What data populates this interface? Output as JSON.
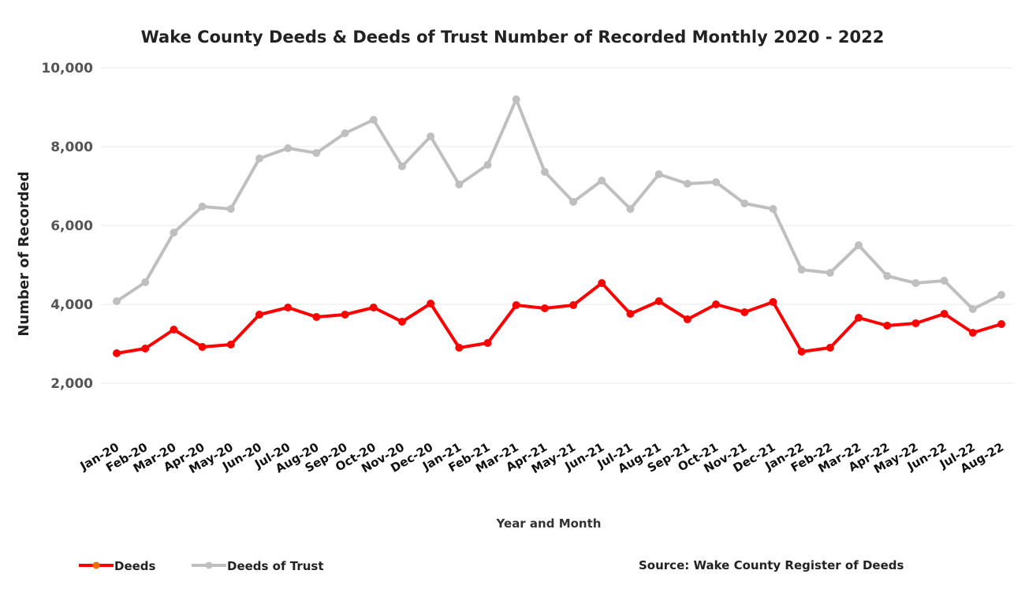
{
  "chart_data": {
    "type": "line",
    "title": "Wake County Deeds & Deeds of Trust Number of Recorded Monthly 2020 - 2022",
    "xlabel": "Year and Month",
    "ylabel": "Number of Recorded",
    "ylim": [
      0,
      10000
    ],
    "yticks": [
      "2,000",
      "4,000",
      "6,000",
      "8,000",
      "10,000"
    ],
    "ytick_values": [
      2000,
      4000,
      6000,
      8000,
      10000
    ],
    "grid": true,
    "legend_position": "bottom-left",
    "categories": [
      "Jan-20",
      "Feb-20",
      "Mar-20",
      "Apr-20",
      "May-20",
      "Jun-20",
      "Jul-20",
      "Aug-20",
      "Sep-20",
      "Oct-20",
      "Nov-20",
      "Dec-20",
      "Jan-21",
      "Feb-21",
      "Mar-21",
      "Apr-21",
      "May-21",
      "Jun-21",
      "Jul-21",
      "Aug-21",
      "Sep-21",
      "Oct-21",
      "Nov-21",
      "Dec-21",
      "Jan-22",
      "Feb-22",
      "Mar-22",
      "Apr-22",
      "May-22",
      "Jun-22",
      "Jul-22",
      "Aug-22"
    ],
    "series": [
      {
        "name": "Deeds",
        "color": "#ff0000",
        "values": [
          2760,
          2880,
          3360,
          2920,
          2980,
          3740,
          3920,
          3680,
          3740,
          3920,
          3560,
          4020,
          2900,
          3020,
          3980,
          3900,
          3980,
          4540,
          3760,
          4080,
          3620,
          4000,
          3800,
          4060,
          2800,
          2900,
          3660,
          3460,
          3520,
          3760,
          3280,
          3500
        ]
      },
      {
        "name": "Deeds of Trust",
        "color": "#bfbfbf",
        "values": [
          4080,
          4560,
          5820,
          6480,
          6420,
          7700,
          7960,
          7840,
          8340,
          8680,
          7500,
          8260,
          7040,
          7540,
          9200,
          7360,
          6600,
          7140,
          6420,
          7300,
          7060,
          7100,
          6560,
          6420,
          4880,
          4800,
          5500,
          4720,
          4540,
          4600,
          3880,
          4240
        ]
      }
    ],
    "source": "Source: Wake County Register of Deeds"
  }
}
